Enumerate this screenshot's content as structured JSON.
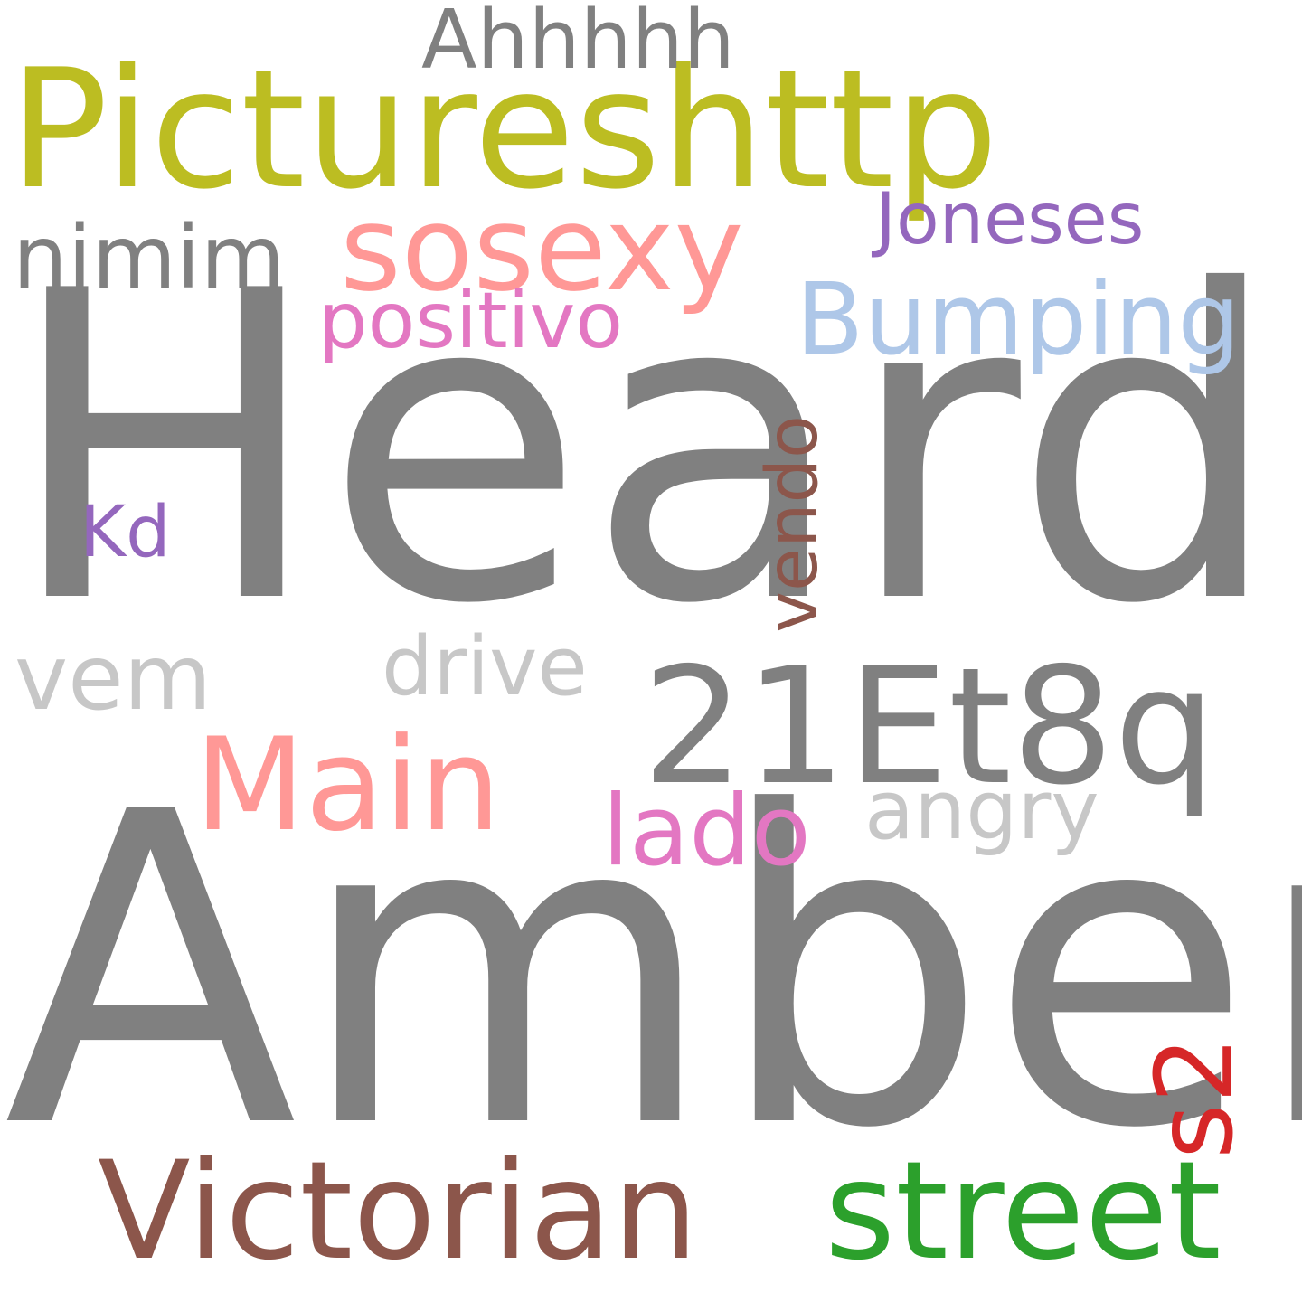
{
  "words": [
    {
      "id": "heard",
      "text": "Heard",
      "color": "#808080"
    },
    {
      "id": "amber",
      "text": "Amber",
      "color": "#808080"
    },
    {
      "id": "pictureshttp",
      "text": "Pictureshttp",
      "color": "#bcbd22"
    },
    {
      "id": "victorian",
      "text": "Victorian",
      "color": "#8c564b"
    },
    {
      "id": "street",
      "text": "street",
      "color": "#2ca02c"
    },
    {
      "id": "21et8q",
      "text": "21Et8q",
      "color": "#808080"
    },
    {
      "id": "main",
      "text": "Main",
      "color": "#ff9896"
    },
    {
      "id": "sosexy",
      "text": "sosexy",
      "color": "#ff9896"
    },
    {
      "id": "bumping",
      "text": "Bumping",
      "color": "#aec7e8"
    },
    {
      "id": "nimim",
      "text": "nimim",
      "color": "#808080"
    },
    {
      "id": "positivo",
      "text": "positivo",
      "color": "#e377c2"
    },
    {
      "id": "joneses",
      "text": "Joneses",
      "color": "#9467bd"
    },
    {
      "id": "ahhhhh",
      "text": "Ahhhhh",
      "color": "#808080"
    },
    {
      "id": "vendo",
      "text": "vendo",
      "color": "#8c564b"
    },
    {
      "id": "kd",
      "text": "Kd",
      "color": "#9467bd"
    },
    {
      "id": "vem",
      "text": "vem",
      "color": "#c7c7c7"
    },
    {
      "id": "drive",
      "text": "drive",
      "color": "#c7c7c7"
    },
    {
      "id": "lado",
      "text": "lado",
      "color": "#e377c2"
    },
    {
      "id": "angry",
      "text": "angry",
      "color": "#c7c7c7"
    },
    {
      "id": "s2",
      "text": "s2",
      "color": "#d62728"
    }
  ]
}
